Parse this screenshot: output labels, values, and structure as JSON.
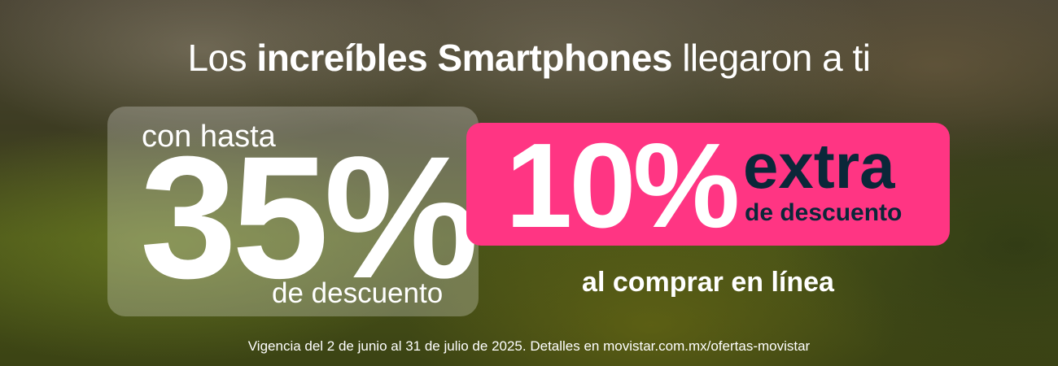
{
  "headline": {
    "pre": "Los ",
    "bold": "increíbles Smartphones",
    "post": " llegaron a ti"
  },
  "offer_left": {
    "intro": "con hasta",
    "percent": "35%",
    "suffix": "de descuento"
  },
  "offer_right": {
    "percent": "10%",
    "extra": "extra",
    "suffix": "de descuento",
    "condition": "al comprar en línea"
  },
  "footer": "Vigencia del 2 de junio al 31 de julio de 2025. Detalles en movistar.com.mx/ofertas-movistar",
  "colors": {
    "accent_pink": "#ff3583",
    "navy": "#0b2739"
  }
}
